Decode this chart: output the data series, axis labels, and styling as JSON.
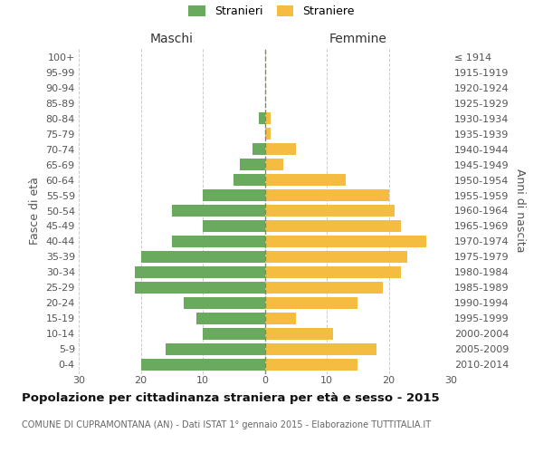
{
  "age_groups": [
    "0-4",
    "5-9",
    "10-14",
    "15-19",
    "20-24",
    "25-29",
    "30-34",
    "35-39",
    "40-44",
    "45-49",
    "50-54",
    "55-59",
    "60-64",
    "65-69",
    "70-74",
    "75-79",
    "80-84",
    "85-89",
    "90-94",
    "95-99",
    "100+"
  ],
  "birth_years": [
    "2010-2014",
    "2005-2009",
    "2000-2004",
    "1995-1999",
    "1990-1994",
    "1985-1989",
    "1980-1984",
    "1975-1979",
    "1970-1974",
    "1965-1969",
    "1960-1964",
    "1955-1959",
    "1950-1954",
    "1945-1949",
    "1940-1944",
    "1935-1939",
    "1930-1934",
    "1925-1929",
    "1920-1924",
    "1915-1919",
    "≤ 1914"
  ],
  "males": [
    20,
    16,
    10,
    11,
    13,
    21,
    21,
    20,
    15,
    10,
    15,
    10,
    5,
    4,
    2,
    0,
    1,
    0,
    0,
    0,
    0
  ],
  "females": [
    15,
    18,
    11,
    5,
    15,
    19,
    22,
    23,
    26,
    22,
    21,
    20,
    13,
    3,
    5,
    1,
    1,
    0,
    0,
    0,
    0
  ],
  "male_color": "#6aaa5e",
  "female_color": "#f5bc42",
  "grid_color": "#cccccc",
  "dashed_line_color": "#888855",
  "title": "Popolazione per cittadinanza straniera per età e sesso - 2015",
  "subtitle": "COMUNE DI CUPRAMONTANA (AN) - Dati ISTAT 1° gennaio 2015 - Elaborazione TUTTITALIA.IT",
  "legend_males": "Stranieri",
  "legend_females": "Straniere",
  "label_maschi": "Maschi",
  "label_femmine": "Femmine",
  "ylabel_left": "Fasce di età",
  "ylabel_right": "Anni di nascita",
  "xlim": 30,
  "bar_height": 0.78,
  "tick_fontsize": 8,
  "label_fontsize": 10,
  "ylabel_fontsize": 9,
  "title_fontsize": 9.5,
  "subtitle_fontsize": 7.0,
  "legend_fontsize": 9
}
